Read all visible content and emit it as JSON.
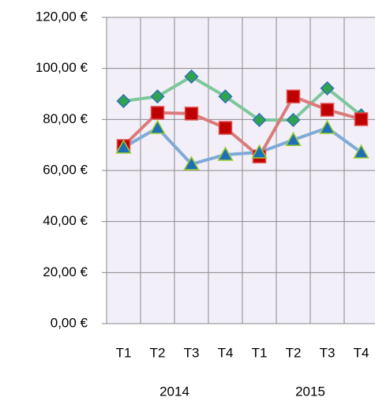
{
  "chart_data": {
    "type": "line",
    "categories": [
      "T1",
      "T2",
      "T3",
      "T4",
      "T1",
      "T2",
      "T3",
      "T4"
    ],
    "groups": [
      "2014",
      "2015"
    ],
    "series": [
      {
        "color": "#7cc89c",
        "marker": "diamond",
        "marker_color": "#2ea44f",
        "marker_edge": "#2f6fb8",
        "values": [
          87.2,
          89,
          96.8,
          89,
          79.8,
          79.8,
          92.2,
          81.6
        ]
      },
      {
        "color": "#d97b7b",
        "marker": "square",
        "marker_color": "#c00000",
        "marker_edge": "#e05050",
        "values": [
          69.6,
          82.6,
          82.3,
          76.7,
          65.5,
          89,
          83.8,
          80.1
        ]
      },
      {
        "color": "#7faad8",
        "marker": "triangle",
        "marker_color": "#1f6fb5",
        "marker_edge": "#9acd32",
        "values": [
          69,
          76.7,
          62.5,
          66.2,
          67.1,
          72,
          76.7,
          67.1
        ]
      }
    ],
    "ylim": [
      0,
      120
    ],
    "yticks": [
      {
        "value": 0,
        "label": "0,00 €"
      },
      {
        "value": 20,
        "label": "20,00 €"
      },
      {
        "value": 40,
        "label": "40,00 €"
      },
      {
        "value": 60,
        "label": "60,00 €"
      },
      {
        "value": 80,
        "label": "80,00 €"
      },
      {
        "value": 100,
        "label": "100,00 €"
      },
      {
        "value": 120,
        "label": "120,00 €"
      }
    ],
    "grid": true,
    "plot_background": "#f3eff8"
  }
}
